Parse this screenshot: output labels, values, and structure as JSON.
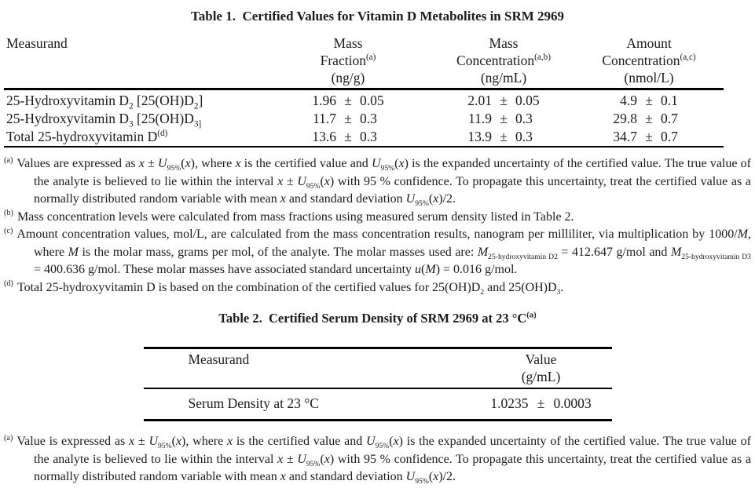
{
  "labels": {
    "pm": "±"
  },
  "table1": {
    "title": "Table 1.  Certified Values for Vitamin D Metabolites in SRM 2969",
    "header": {
      "measurand": "Measurand",
      "col2": {
        "l1": "Mass",
        "l2": [
          [
            "",
            "Fraction"
          ],
          [
            "sup",
            "(a)"
          ]
        ],
        "l3": "(ng/g)"
      },
      "col3": {
        "l1": "Mass",
        "l2": [
          [
            "",
            "Concentration"
          ],
          [
            "sup",
            "(a,b)"
          ]
        ],
        "l3": "(ng/mL)"
      },
      "col4": {
        "l1": "Amount",
        "l2": [
          [
            "",
            "Concentration"
          ],
          [
            "sup",
            "(a,c)"
          ]
        ],
        "l3": "(nmol/L)"
      }
    },
    "rows": [
      {
        "name": [
          [
            "",
            "25-Hydroxyvitamin D"
          ],
          [
            "sub",
            "2"
          ],
          [
            "",
            " [25(OH)D"
          ],
          [
            "sub",
            "2"
          ],
          [
            "",
            "]"
          ]
        ],
        "mass_fraction": {
          "value": "1.96",
          "unc": "0.05"
        },
        "mass_concentration": {
          "value": "2.01",
          "unc": "0.05"
        },
        "amount_concentration": {
          "value": "4.9",
          "unc": "0.1"
        }
      },
      {
        "name": [
          [
            "",
            "25-Hydroxyvitamin D"
          ],
          [
            "sub",
            "3"
          ],
          [
            "",
            " [25(OH)D"
          ],
          [
            "sub",
            "3]"
          ]
        ],
        "mass_fraction": {
          "value": "11.7",
          "unc": "0.3"
        },
        "mass_concentration": {
          "value": "11.9",
          "unc": "0.3"
        },
        "amount_concentration": {
          "value": "29.8",
          "unc": "0.7"
        }
      },
      {
        "name": [
          [
            "",
            "Total 25-hydroxyvitamin D"
          ],
          [
            "sup",
            "(d)"
          ]
        ],
        "mass_fraction": {
          "value": "13.6",
          "unc": "0.3"
        },
        "mass_concentration": {
          "value": "13.9",
          "unc": "0.3"
        },
        "amount_concentration": {
          "value": "34.7",
          "unc": "0.7"
        }
      }
    ]
  },
  "footnotes1": [
    {
      "marker": "(a)",
      "runs": [
        [
          "",
          "Values are expressed as "
        ],
        [
          "i",
          "x"
        ],
        [
          "",
          " ± "
        ],
        [
          "i",
          "U"
        ],
        [
          "sub",
          "95%"
        ],
        [
          "",
          "("
        ],
        [
          "i",
          "x"
        ],
        [
          "",
          "), where "
        ],
        [
          "i",
          "x"
        ],
        [
          "",
          " is the certified value and "
        ],
        [
          "i",
          "U"
        ],
        [
          "sub",
          "95%"
        ],
        [
          "",
          "("
        ],
        [
          "i",
          "x"
        ],
        [
          "",
          ") is the expanded uncertainty of the certified value. The true value of the analyte is believed to lie within the interval "
        ],
        [
          "i",
          "x"
        ],
        [
          "",
          " ± "
        ],
        [
          "i",
          "U"
        ],
        [
          "sub",
          "95%"
        ],
        [
          "",
          "("
        ],
        [
          "i",
          "x"
        ],
        [
          "",
          ") with 95 % confidence.  To propagate this uncertainty, treat the certified value as a normally distributed random variable with mean "
        ],
        [
          "i",
          "x"
        ],
        [
          "",
          " and standard deviation "
        ],
        [
          "i",
          "U"
        ],
        [
          "sub",
          "95%"
        ],
        [
          "",
          "("
        ],
        [
          "i",
          "x"
        ],
        [
          "",
          ")/2."
        ]
      ]
    },
    {
      "marker": "(b)",
      "runs": [
        [
          "",
          "Mass concentration levels were calculated from mass fractions using measured serum density listed in Table 2."
        ]
      ]
    },
    {
      "marker": "(c)",
      "runs": [
        [
          "",
          "Amount concentration values, mol/L, are calculated from the mass concentration results, nanogram per milliliter, via multiplication by 1000/"
        ],
        [
          "i",
          "M"
        ],
        [
          "",
          ", where "
        ],
        [
          "i",
          "M"
        ],
        [
          "",
          " is the molar mass, grams per mol, of the analyte.  The molar masses used are: "
        ],
        [
          "i",
          "M"
        ],
        [
          "sub",
          "25-hydroxyvitamin D2"
        ],
        [
          "",
          " = 412.647 g/mol and "
        ],
        [
          "i",
          "M"
        ],
        [
          "sub",
          "25-hydroxyvitamin D3"
        ],
        [
          "",
          " = 400.636 g/mol.  These molar masses have associated standard uncertainty "
        ],
        [
          "i",
          "u"
        ],
        [
          "",
          "("
        ],
        [
          "i",
          "M"
        ],
        [
          "",
          ") = 0.016 g/mol."
        ]
      ]
    },
    {
      "marker": "(d)",
      "runs": [
        [
          "",
          "Total 25-hydroxyvitamin D is based on the combination of the certified values for 25(OH)D"
        ],
        [
          "sub",
          "2"
        ],
        [
          "",
          " and 25(OH)D"
        ],
        [
          "sub",
          "3"
        ],
        [
          "",
          "."
        ]
      ]
    }
  ],
  "table2": {
    "title_runs": [
      [
        "",
        "Table 2.  Certified Serum Density of SRM 2969 at 23 °C"
      ],
      [
        "sup",
        "(a)"
      ]
    ],
    "header": {
      "measurand": "Measurand",
      "value_line1": "Value",
      "value_line2": "(g/mL)"
    },
    "row": {
      "name": "Serum Density at 23 °C",
      "value": {
        "value": "1.0235",
        "unc": "0.0003"
      }
    }
  },
  "footnotes2": [
    {
      "marker": "(a)",
      "runs": [
        [
          "",
          "Value is expressed as "
        ],
        [
          "i",
          "x"
        ],
        [
          "",
          " ± "
        ],
        [
          "i",
          "U"
        ],
        [
          "sub",
          "95%"
        ],
        [
          "",
          "("
        ],
        [
          "i",
          "x"
        ],
        [
          "",
          "), where "
        ],
        [
          "i",
          "x"
        ],
        [
          "",
          " is the certified value and "
        ],
        [
          "i",
          "U"
        ],
        [
          "sub",
          "95%"
        ],
        [
          "",
          "("
        ],
        [
          "i",
          "x"
        ],
        [
          "",
          ") is the expanded uncertainty of the certified value. The true value of the analyte is believed to lie within the interval "
        ],
        [
          "i",
          "x"
        ],
        [
          "",
          " ± "
        ],
        [
          "i",
          "U"
        ],
        [
          "sub",
          "95%"
        ],
        [
          "",
          "("
        ],
        [
          "i",
          "x"
        ],
        [
          "",
          ") with 95 % confidence.  To propagate this uncertainty, treat the certified value as a normally distributed random variable with mean "
        ],
        [
          "i",
          "x"
        ],
        [
          "",
          " and standard deviation "
        ],
        [
          "i",
          "U"
        ],
        [
          "sub",
          "95%"
        ],
        [
          "",
          "("
        ],
        [
          "i",
          "x"
        ],
        [
          "",
          ")/2."
        ]
      ]
    }
  ]
}
